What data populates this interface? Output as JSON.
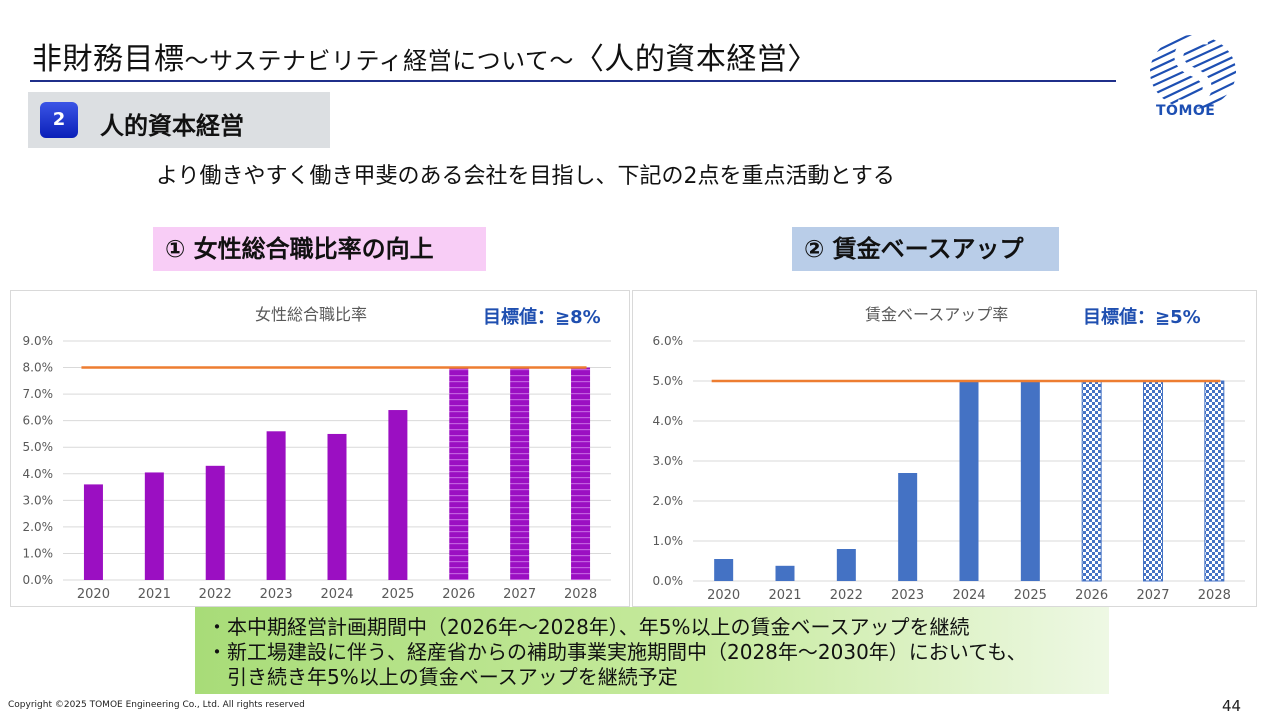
{
  "header": {
    "title_main": "非財務目標",
    "title_sub": "〜サステナビリティ経営について〜",
    "title_tail": "〈人的資本経営〉",
    "logo_text": "TOMOE"
  },
  "section": {
    "number": "2",
    "label": "人的資本経営"
  },
  "lead_text": "より働きやすく働き甲斐のある会社を目指し、下記の2点を重点活動とする",
  "chips": {
    "left": "① 女性総合職比率の向上",
    "right": "② 賃金ベースアップ"
  },
  "chart_data": [
    {
      "type": "bar",
      "title": "女性総合職比率",
      "target_label": "目標値：≧8%",
      "categories": [
        "2020",
        "2021",
        "2022",
        "2023",
        "2024",
        "2025",
        "2026",
        "2027",
        "2028"
      ],
      "values": [
        3.6,
        4.05,
        4.3,
        5.6,
        5.5,
        6.4,
        8.0,
        8.0,
        8.0
      ],
      "target_value": 8.0,
      "ylim": [
        0,
        9
      ],
      "yticks": [
        "0.0%",
        "1.0%",
        "2.0%",
        "3.0%",
        "4.0%",
        "5.0%",
        "6.0%",
        "7.0%",
        "8.0%",
        "9.0%"
      ],
      "grid": true,
      "bar_color": "#9b0fc2",
      "target_color": "#ed7d31",
      "planned_from_index": 6
    },
    {
      "type": "bar",
      "title": "賃金ベースアップ率",
      "target_label": "目標値：≧5%",
      "categories": [
        "2020",
        "2021",
        "2022",
        "2023",
        "2024",
        "2025",
        "2026",
        "2027",
        "2028"
      ],
      "values": [
        0.55,
        0.38,
        0.8,
        2.7,
        5.0,
        5.0,
        5.0,
        5.0,
        5.0
      ],
      "target_value": 5.0,
      "ylim": [
        0,
        6
      ],
      "yticks": [
        "0.0%",
        "1.0%",
        "2.0%",
        "3.0%",
        "4.0%",
        "5.0%",
        "6.0%"
      ],
      "grid": true,
      "bar_color": "#4472c4",
      "target_color": "#ed7d31",
      "planned_from_index": 6
    }
  ],
  "notes": [
    "・本中期経営計画期間中（2026年〜2028年）、年5%以上の賃金ベースアップを継続",
    "・新工場建設に伴う、経産省からの補助事業実施期間中（2028年〜2030年）においても、",
    "引き続き年5%以上の賃金ベースアップを継続予定"
  ],
  "footer": {
    "copyright": "Copyright ©2025 TOMOE Engineering Co., Ltd. All rights reserved",
    "page": "44"
  }
}
